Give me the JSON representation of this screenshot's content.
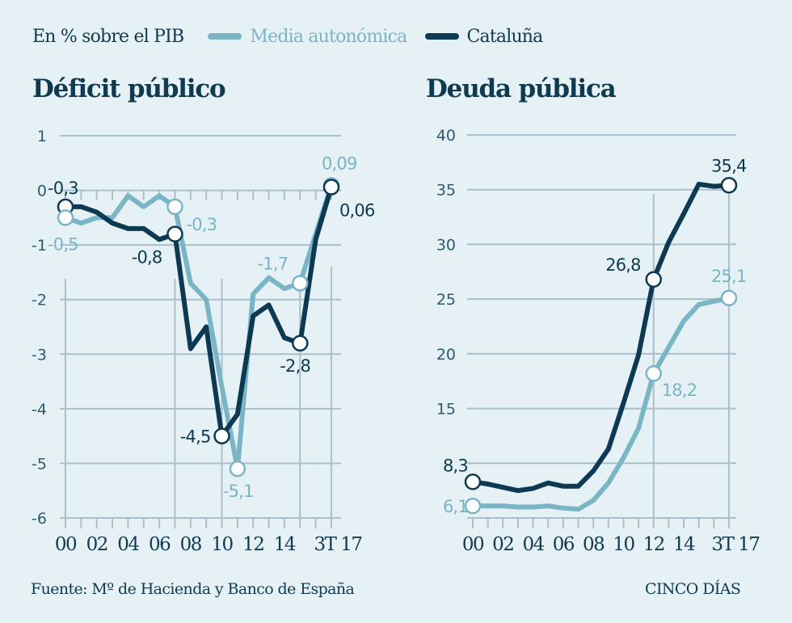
{
  "legend": {
    "unit": "En % sobre el PIB",
    "series": [
      {
        "name": "Media autonómica",
        "color": "#7ab5c6"
      },
      {
        "name": "Cataluña",
        "color": "#0d3a52"
      }
    ]
  },
  "footer": {
    "source": "Fuente: Mº de Hacienda y Banco de España",
    "brand": "CINCO DÍAS"
  },
  "colors": {
    "background": "#e6f1f5",
    "grid": "#a9c0cc",
    "media": "#7ab5c6",
    "cataluna": "#0d3a52"
  },
  "chart_data": [
    {
      "type": "line",
      "title": "Déficit público",
      "ylabel": "En % sobre el PIB",
      "x": [
        "00",
        "01",
        "02",
        "03",
        "04",
        "05",
        "06",
        "07",
        "08",
        "09",
        "10",
        "11",
        "12",
        "13",
        "14",
        "15",
        "16",
        "3T 17"
      ],
      "x_tick_labels": [
        "00",
        "02",
        "04",
        "06",
        "08",
        "10",
        "12",
        "14",
        "3T 17"
      ],
      "y_ticks": [
        1,
        0,
        -1,
        -2,
        -3,
        -4,
        -5,
        -6
      ],
      "y_tick_labels": [
        "1",
        "0",
        "-1",
        "-2",
        "-3",
        "-4",
        "-5",
        "-6"
      ],
      "ylim": [
        -6,
        1
      ],
      "grid": true,
      "series": [
        {
          "name": "Media autonómica",
          "values": [
            -0.5,
            -0.6,
            -0.5,
            -0.5,
            -0.1,
            -0.3,
            -0.1,
            -0.3,
            -1.7,
            -2.0,
            -3.6,
            -5.1,
            -1.9,
            -1.6,
            -1.8,
            -1.7,
            -0.8,
            0.09
          ]
        },
        {
          "name": "Cataluña",
          "values": [
            -0.3,
            -0.3,
            -0.4,
            -0.6,
            -0.7,
            -0.7,
            -0.9,
            -0.8,
            -2.9,
            -2.5,
            -4.5,
            -4.1,
            -2.3,
            -2.1,
            -2.7,
            -2.8,
            -0.9,
            0.06
          ]
        }
      ],
      "annotations": [
        {
          "series": "Cataluña",
          "x": "00",
          "value": -0.3,
          "text": "-0,3"
        },
        {
          "series": "Media autonómica",
          "x": "00",
          "value": -0.5,
          "text": "-0,5"
        },
        {
          "series": "Media autonómica",
          "x": "07",
          "value": -0.3,
          "text": "-0,3"
        },
        {
          "series": "Cataluña",
          "x": "07",
          "value": -0.8,
          "text": "-0,8"
        },
        {
          "series": "Cataluña",
          "x": "10",
          "value": -4.5,
          "text": "-4,5"
        },
        {
          "series": "Media autonómica",
          "x": "11",
          "value": -5.1,
          "text": "-5,1"
        },
        {
          "series": "Media autonómica",
          "x": "15",
          "value": -1.7,
          "text": "-1,7"
        },
        {
          "series": "Cataluña",
          "x": "15",
          "value": -2.8,
          "text": "-2,8"
        },
        {
          "series": "Media autonómica",
          "x": "3T 17",
          "value": 0.09,
          "text": "0,09"
        },
        {
          "series": "Cataluña",
          "x": "3T 17",
          "value": 0.06,
          "text": "0,06"
        }
      ]
    },
    {
      "type": "line",
      "title": "Deuda pública",
      "ylabel": "En % sobre el PIB",
      "x": [
        "00",
        "01",
        "02",
        "03",
        "04",
        "05",
        "06",
        "07",
        "08",
        "09",
        "10",
        "11",
        "12",
        "13",
        "14",
        "15",
        "16",
        "3T 17"
      ],
      "x_tick_labels": [
        "00",
        "02",
        "04",
        "06",
        "08",
        "10",
        "12",
        "14",
        "3T 17"
      ],
      "y_ticks": [
        40,
        35,
        30,
        25,
        20,
        15,
        10,
        5
      ],
      "y_tick_labels": [
        "40",
        "35",
        "30",
        "25",
        "20",
        "15",
        "",
        ""
      ],
      "ylim": [
        5,
        40
      ],
      "grid": true,
      "series": [
        {
          "name": "Media autonómica",
          "values": [
            6.1,
            6.1,
            6.1,
            6.0,
            6.0,
            6.1,
            5.9,
            5.8,
            6.6,
            8.2,
            10.5,
            13.2,
            18.2,
            20.6,
            23.0,
            24.5,
            24.8,
            25.1
          ]
        },
        {
          "name": "Cataluña",
          "values": [
            8.3,
            8.1,
            7.8,
            7.5,
            7.7,
            8.2,
            7.9,
            7.9,
            9.3,
            11.3,
            15.5,
            19.9,
            26.8,
            30.2,
            32.8,
            35.5,
            35.3,
            35.4
          ]
        }
      ],
      "annotations": [
        {
          "series": "Cataluña",
          "x": "00",
          "value": 8.3,
          "text": "8,3"
        },
        {
          "series": "Media autonómica",
          "x": "00",
          "value": 6.1,
          "text": "6,1"
        },
        {
          "series": "Cataluña",
          "x": "12",
          "value": 26.8,
          "text": "26,8"
        },
        {
          "series": "Media autonómica",
          "x": "12",
          "value": 18.2,
          "text": "18,2"
        },
        {
          "series": "Cataluña",
          "x": "3T 17",
          "value": 35.4,
          "text": "35,4"
        },
        {
          "series": "Media autonómica",
          "x": "3T 17",
          "value": 25.1,
          "text": "25,1"
        }
      ]
    }
  ]
}
